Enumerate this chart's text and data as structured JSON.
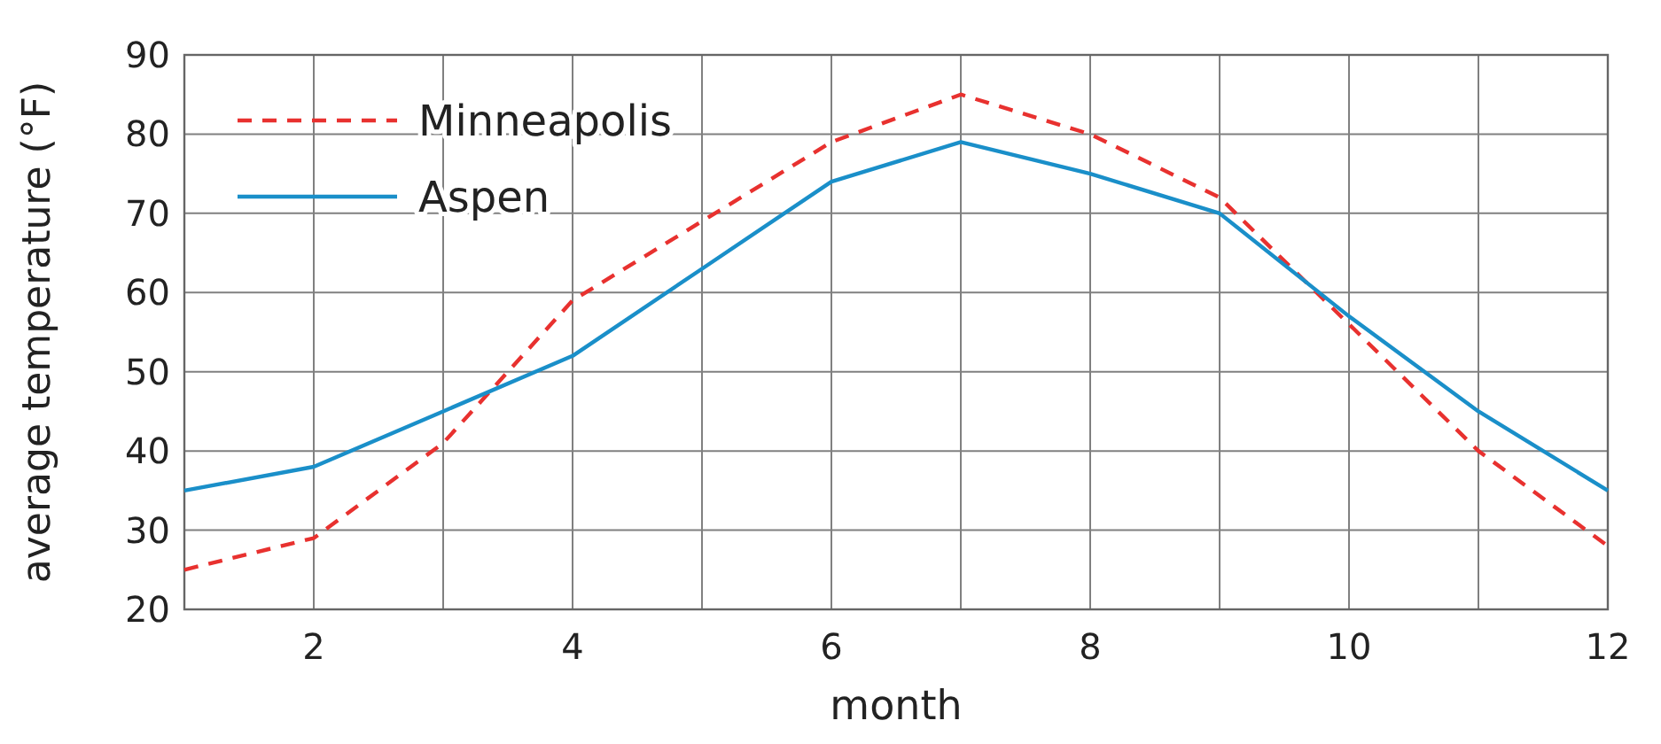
{
  "chart_data": {
    "type": "line",
    "xlabel": "month",
    "ylabel": "average temperature (°F)",
    "x": [
      1,
      2,
      3,
      4,
      5,
      6,
      7,
      8,
      9,
      10,
      11,
      12
    ],
    "series": [
      {
        "name": "Minneapolis",
        "color": "#e8312f",
        "line_style": "dashed",
        "values": [
          25,
          29,
          41,
          59,
          69,
          79,
          85,
          80,
          72,
          56,
          40,
          28
        ]
      },
      {
        "name": "Aspen",
        "color": "#1a8fc9",
        "line_style": "solid",
        "values": [
          35,
          38,
          45,
          52,
          63,
          74,
          79,
          75,
          70,
          57,
          45,
          35
        ]
      }
    ],
    "xlim": [
      1,
      12
    ],
    "ylim": [
      20,
      90
    ],
    "xticks": [
      {
        "value": 1,
        "label": null
      },
      2,
      {
        "value": 3,
        "label": null
      },
      4,
      {
        "value": 5,
        "label": null
      },
      6,
      {
        "value": 7,
        "label": null
      },
      8,
      {
        "value": 9,
        "label": null
      },
      10,
      {
        "value": 11,
        "label": null
      },
      12
    ],
    "yticks": [
      20,
      30,
      40,
      50,
      60,
      70,
      80,
      90
    ],
    "grid": true,
    "legend": "top left"
  }
}
